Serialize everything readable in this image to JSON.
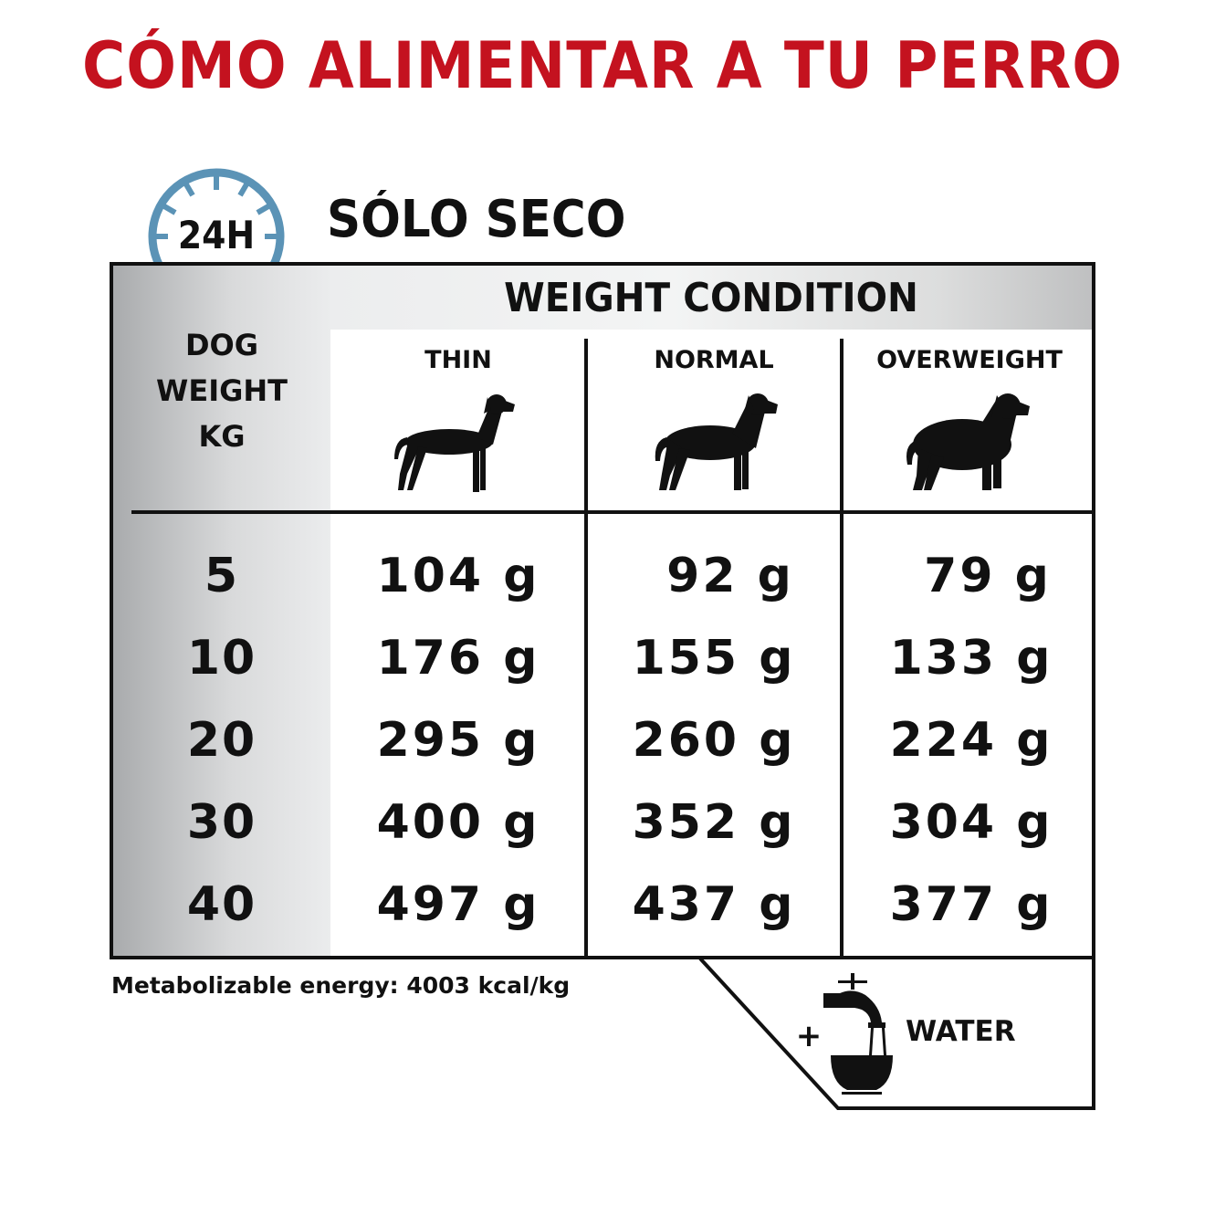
{
  "title": "CÓMO ALIMENTAR A TU PERRO",
  "subtitle": "SÓLO SECO",
  "clock_badge": {
    "label": "24H",
    "icon": "clock-24h-icon",
    "color": "#5b93b6"
  },
  "table": {
    "header": "WEIGHT CONDITION",
    "weight_column_header": [
      "DOG",
      "WEIGHT",
      "KG"
    ],
    "conditions": [
      {
        "label": "THIN",
        "icon": "dog-thin-icon"
      },
      {
        "label": "NORMAL",
        "icon": "dog-normal-icon"
      },
      {
        "label": "OVERWEIGHT",
        "icon": "dog-overweight-icon"
      }
    ],
    "rows": [
      {
        "weight": "5",
        "values": [
          "104 g",
          "92 g",
          "79 g"
        ]
      },
      {
        "weight": "10",
        "values": [
          "176 g",
          "155 g",
          "133 g"
        ]
      },
      {
        "weight": "20",
        "values": [
          "295 g",
          "260 g",
          "224 g"
        ]
      },
      {
        "weight": "30",
        "values": [
          "400 g",
          "352 g",
          "304 g"
        ]
      },
      {
        "weight": "40",
        "values": [
          "497 g",
          "437 g",
          "377 g"
        ]
      }
    ]
  },
  "footer": {
    "energy": "Metabolizable energy: 4003 kcal/kg"
  },
  "water": {
    "plus": "+",
    "label": "WATER",
    "icon": "water-tap-bowl-icon"
  },
  "colors": {
    "title": "#c4121f",
    "accent_blue": "#5b93b6"
  }
}
